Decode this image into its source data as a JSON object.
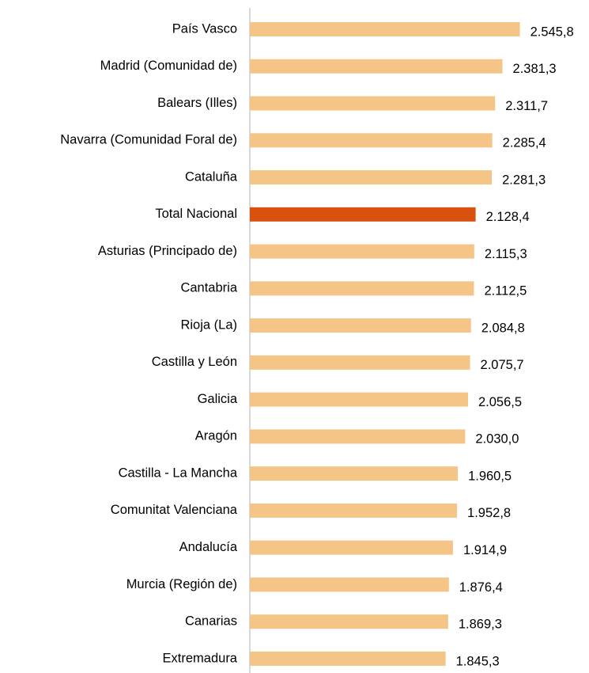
{
  "chart_data": {
    "type": "barh",
    "categories": [
      "País Vasco",
      "Madrid (Comunidad de)",
      "Balears (Illes)",
      "Navarra (Comunidad Foral de)",
      "Cataluña",
      "Total Nacional",
      "Asturias (Principado de)",
      "Cantabria",
      "Rioja (La)",
      "Castilla y León",
      "Galicia",
      "Aragón",
      "Castilla - La Mancha",
      "Comunitat Valenciana",
      "Andalucía",
      "Murcia (Región de)",
      "Canarias",
      "Extremadura"
    ],
    "values": [
      2545.8,
      2381.3,
      2311.7,
      2285.4,
      2281.3,
      2128.4,
      2115.3,
      2112.5,
      2084.8,
      2075.7,
      2056.5,
      2030.0,
      1960.5,
      1952.8,
      1914.9,
      1876.4,
      1869.3,
      1845.3
    ],
    "value_labels": [
      "2.545,8",
      "2.381,3",
      "2.311,7",
      "2.285,4",
      "2.281,3",
      "2.128,4",
      "2.115,3",
      "2.112,5",
      "2.084,8",
      "2.075,7",
      "2.056,5",
      "2.030,0",
      "1.960,5",
      "1.952,8",
      "1.914,9",
      "1.876,4",
      "1.869,3",
      "1.845,3"
    ],
    "colors": [
      "#f5c587",
      "#f5c587",
      "#f5c587",
      "#f5c587",
      "#f5c587",
      "#d9510f",
      "#f5c587",
      "#f5c587",
      "#f5c587",
      "#f5c587",
      "#f5c587",
      "#f5c587",
      "#f5c587",
      "#f5c587",
      "#f5c587",
      "#f5c587",
      "#f5c587",
      "#f5c587"
    ],
    "xlim": [
      0,
      3200
    ]
  }
}
